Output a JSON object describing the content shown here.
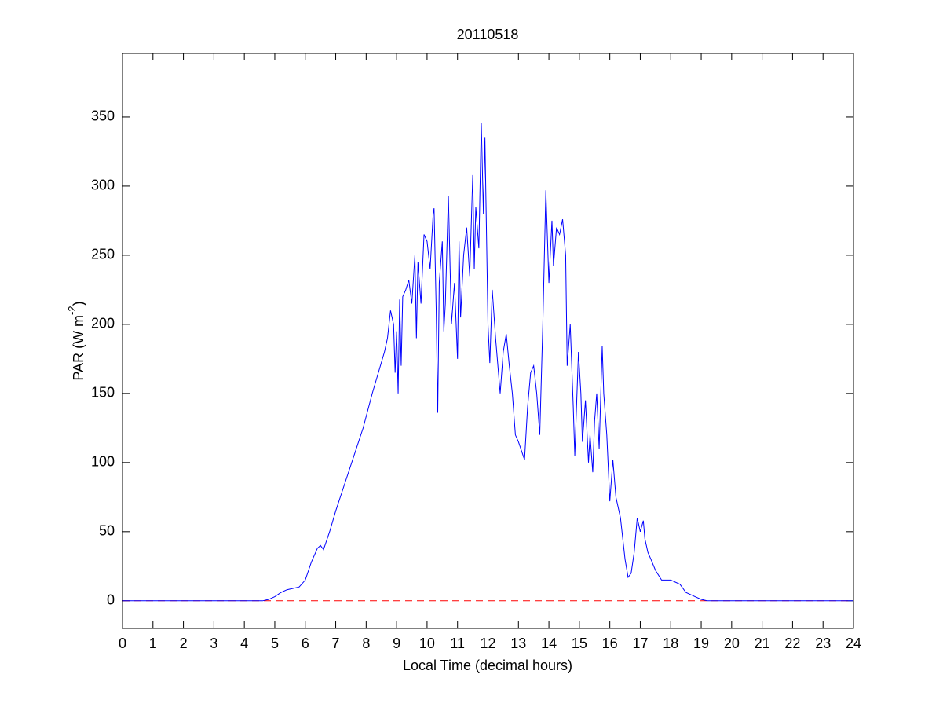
{
  "chart_data": {
    "type": "line",
    "title": "20110518",
    "xlabel": "Local Time (decimal hours)",
    "ylabel": {
      "text": "PAR (W m",
      "superscript": "-2",
      "suffix": ")"
    },
    "x": [
      0,
      4.6,
      4.8,
      5.0,
      5.2,
      5.4,
      5.6,
      5.8,
      6.0,
      6.2,
      6.4,
      6.5,
      6.6,
      6.8,
      7.0,
      7.3,
      7.6,
      7.9,
      8.2,
      8.4,
      8.6,
      8.7,
      8.8,
      8.9,
      8.95,
      9.0,
      9.05,
      9.1,
      9.15,
      9.2,
      9.3,
      9.4,
      9.5,
      9.6,
      9.65,
      9.7,
      9.8,
      9.9,
      10.0,
      10.1,
      10.2,
      10.23,
      10.3,
      10.35,
      10.4,
      10.5,
      10.55,
      10.6,
      10.7,
      10.8,
      10.9,
      11.0,
      11.05,
      11.1,
      11.2,
      11.3,
      11.4,
      11.5,
      11.55,
      11.6,
      11.7,
      11.78,
      11.85,
      11.9,
      12.0,
      12.06,
      12.14,
      12.25,
      12.4,
      12.5,
      12.6,
      12.7,
      12.8,
      12.9,
      13.0,
      13.2,
      13.3,
      13.4,
      13.5,
      13.6,
      13.7,
      13.8,
      13.9,
      14.0,
      14.1,
      14.15,
      14.25,
      14.35,
      14.45,
      14.55,
      14.6,
      14.7,
      14.8,
      14.85,
      14.97,
      15.05,
      15.1,
      15.2,
      15.3,
      15.35,
      15.44,
      15.5,
      15.57,
      15.65,
      15.75,
      15.8,
      15.9,
      16.0,
      16.1,
      16.2,
      16.35,
      16.5,
      16.6,
      16.7,
      16.8,
      16.9,
      17.0,
      17.1,
      17.15,
      17.25,
      17.35,
      17.5,
      17.7,
      18.0,
      18.3,
      18.5,
      18.8,
      19.0,
      19.2,
      19.5,
      24
    ],
    "series": [
      {
        "color": "#0000ff",
        "values": [
          0,
          0,
          1,
          3,
          6,
          8,
          9,
          10,
          15,
          28,
          38,
          40,
          37,
          50,
          65,
          85,
          105,
          125,
          150,
          165,
          180,
          190,
          210,
          200,
          165,
          195,
          150,
          218,
          170,
          220,
          225,
          232,
          215,
          250,
          190,
          245,
          215,
          265,
          260,
          240,
          280,
          284,
          210,
          136,
          230,
          260,
          195,
          215,
          293,
          200,
          230,
          175,
          260,
          205,
          250,
          270,
          235,
          308,
          240,
          285,
          255,
          346,
          280,
          335,
          200,
          172,
          225,
          190,
          150,
          180,
          193,
          170,
          150,
          120,
          115,
          102,
          140,
          165,
          170,
          150,
          120,
          200,
          297,
          230,
          275,
          242,
          270,
          265,
          276,
          250,
          170,
          200,
          140,
          105,
          180,
          150,
          115,
          145,
          100,
          120,
          93,
          130,
          150,
          110,
          184,
          150,
          120,
          72,
          102,
          75,
          60,
          30,
          17,
          20,
          35,
          60,
          50,
          58,
          45,
          35,
          30,
          22,
          15,
          15,
          12,
          6,
          3,
          1,
          0,
          0,
          0
        ]
      }
    ],
    "reference_line": {
      "value": 0,
      "color": "#ff0000",
      "style": "dashed"
    },
    "xlim": [
      0,
      24
    ],
    "xticks": [
      0,
      1,
      2,
      3,
      4,
      5,
      6,
      7,
      8,
      9,
      10,
      11,
      12,
      13,
      14,
      15,
      16,
      17,
      18,
      19,
      20,
      21,
      22,
      23,
      24
    ],
    "ylim": [
      -20,
      396
    ],
    "yticks": [
      0,
      50,
      100,
      150,
      200,
      250,
      300,
      350
    ],
    "grid": false
  }
}
